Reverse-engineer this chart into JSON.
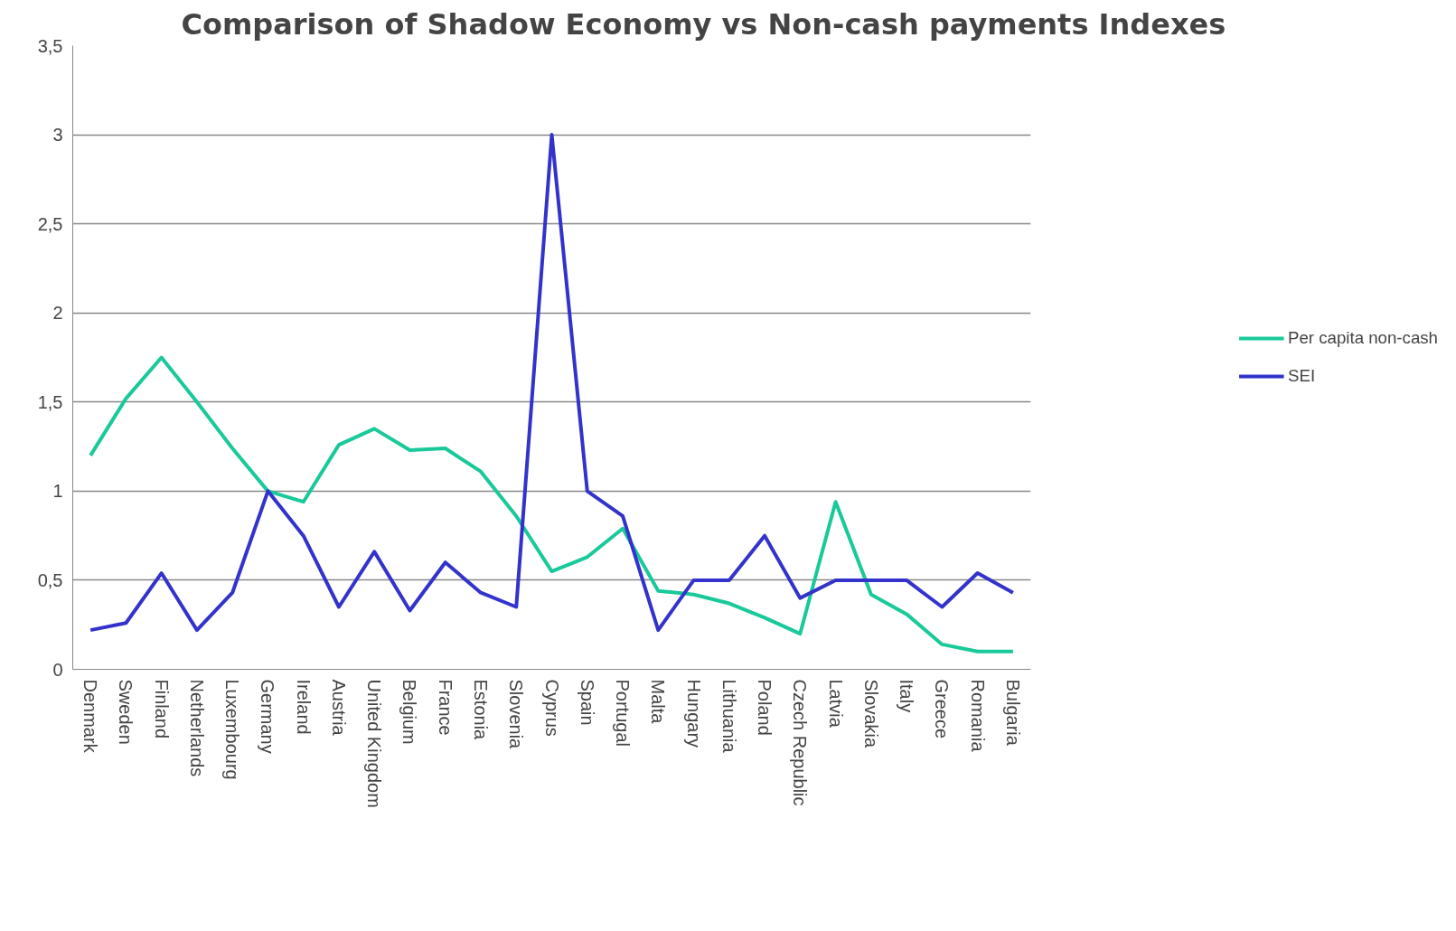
{
  "chart_data": {
    "type": "line",
    "title": "Comparison of Shadow Economy vs Non-cash payments Indexes",
    "categories": [
      "Denmark",
      "Sweden",
      "Finland",
      "Netherlands",
      "Luxembourg",
      "Germany",
      "Ireland",
      "Austria",
      "United Kingdom",
      "Belgium",
      "France",
      "Estonia",
      "Slovenia",
      "Cyprus",
      "Spain",
      "Portugal",
      "Malta",
      "Hungary",
      "Lithuania",
      "Poland",
      "Czech Republic",
      "Latvia",
      "Slovakia",
      "Italy",
      "Greece",
      "Romania",
      "Bulgaria"
    ],
    "series": [
      {
        "name": "Per capita non-cash",
        "color": "#19c99a",
        "values": [
          1.2,
          1.52,
          1.75,
          1.5,
          1.24,
          1.0,
          0.94,
          1.26,
          1.35,
          1.23,
          1.24,
          1.11,
          0.86,
          0.55,
          0.63,
          0.79,
          0.44,
          0.42,
          0.37,
          0.29,
          0.2,
          0.94,
          0.42,
          0.31,
          0.14,
          0.1,
          0.1
        ]
      },
      {
        "name": "SEI",
        "color": "#3333cc",
        "values": [
          0.22,
          0.26,
          0.54,
          0.22,
          0.43,
          1.0,
          0.75,
          0.35,
          0.66,
          0.33,
          0.6,
          0.43,
          0.35,
          3.0,
          1.0,
          0.86,
          0.22,
          0.5,
          0.5,
          0.75,
          0.4,
          0.5,
          0.5,
          0.5,
          0.35,
          0.54,
          0.43
        ]
      }
    ],
    "ylim": [
      0,
      3.5
    ],
    "yticks": [
      {
        "value": 0,
        "label": "0"
      },
      {
        "value": 0.5,
        "label": "0,5"
      },
      {
        "value": 1,
        "label": "1"
      },
      {
        "value": 1.5,
        "label": "1,5"
      },
      {
        "value": 2,
        "label": "2"
      },
      {
        "value": 2.5,
        "label": "2,5"
      },
      {
        "value": 3,
        "label": "3"
      },
      {
        "value": 3.5,
        "label": "3,5"
      }
    ],
    "grid": "y",
    "legend": "right",
    "marker": "none",
    "line_style": "solid"
  }
}
